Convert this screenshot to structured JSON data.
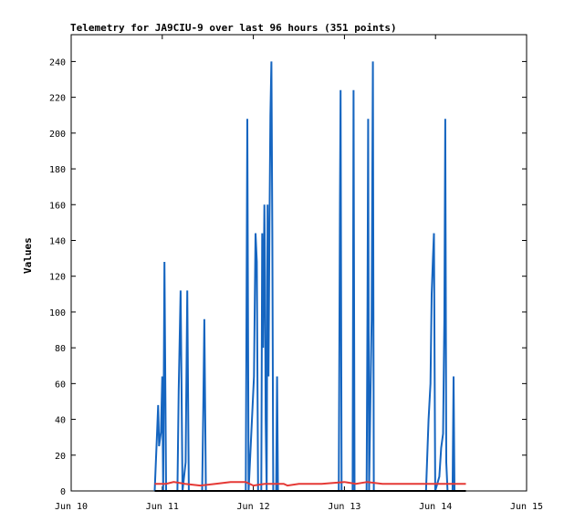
{
  "chart_data": {
    "type": "line",
    "title": "Telemetry for JA9CIU-9 over last 96 hours (351 points)",
    "xlabel": "",
    "ylabel": "Values",
    "x_ticks": [
      "Jun 10",
      "Jun 11",
      "Jun 12",
      "Jun 13",
      "Jun 14",
      "Jun 15"
    ],
    "xlim": [
      "2024-06-10 00:00",
      "2024-06-15 00:00"
    ],
    "ylim": [
      0,
      255
    ],
    "y_ticks": [
      0,
      20,
      40,
      60,
      80,
      100,
      120,
      140,
      160,
      180,
      200,
      220,
      240
    ],
    "grid": false,
    "legend": "none",
    "series": [
      {
        "color": "#1565c0",
        "style": "spikes",
        "points": [
          [
            "2024-06-10 22:00",
            0
          ],
          [
            "2024-06-10 22:40",
            35
          ],
          [
            "2024-06-10 22:55",
            48
          ],
          [
            "2024-06-10 23:10",
            25
          ],
          [
            "2024-06-10 23:40",
            33
          ],
          [
            "2024-06-11 00:00",
            64
          ],
          [
            "2024-06-11 00:15",
            0
          ],
          [
            "2024-06-11 00:35",
            128
          ],
          [
            "2024-06-11 01:00",
            0
          ],
          [
            "2024-06-11 04:00",
            0
          ],
          [
            "2024-06-11 04:20",
            56
          ],
          [
            "2024-06-11 04:50",
            112
          ],
          [
            "2024-06-11 05:20",
            0
          ],
          [
            "2024-06-11 06:10",
            16
          ],
          [
            "2024-06-11 06:35",
            112
          ],
          [
            "2024-06-11 07:00",
            0
          ],
          [
            "2024-06-11 10:30",
            0
          ],
          [
            "2024-06-11 10:50",
            48
          ],
          [
            "2024-06-11 11:05",
            96
          ],
          [
            "2024-06-11 11:30",
            0
          ],
          [
            "2024-06-11 22:00",
            0
          ],
          [
            "2024-06-11 22:25",
            208
          ],
          [
            "2024-06-11 22:45",
            0
          ],
          [
            "2024-06-12 00:10",
            64
          ],
          [
            "2024-06-12 00:35",
            144
          ],
          [
            "2024-06-12 00:55",
            128
          ],
          [
            "2024-06-12 01:15",
            0
          ],
          [
            "2024-06-12 02:05",
            0
          ],
          [
            "2024-06-12 02:20",
            144
          ],
          [
            "2024-06-12 02:35",
            80
          ],
          [
            "2024-06-12 02:55",
            160
          ],
          [
            "2024-06-12 03:05",
            120
          ],
          [
            "2024-06-12 03:15",
            40
          ],
          [
            "2024-06-12 03:30",
            0
          ],
          [
            "2024-06-12 03:45",
            160
          ],
          [
            "2024-06-12 04:00",
            64
          ],
          [
            "2024-06-12 04:15",
            150
          ],
          [
            "2024-06-12 04:30",
            210
          ],
          [
            "2024-06-12 04:45",
            240
          ],
          [
            "2024-06-12 05:00",
            144
          ],
          [
            "2024-06-12 05:15",
            0
          ],
          [
            "2024-06-12 06:00",
            0
          ],
          [
            "2024-06-12 06:15",
            64
          ],
          [
            "2024-06-12 06:30",
            0
          ],
          [
            "2024-06-12 22:30",
            0
          ],
          [
            "2024-06-12 22:50",
            160
          ],
          [
            "2024-06-12 23:00",
            224
          ],
          [
            "2024-06-12 23:15",
            0
          ],
          [
            "2024-06-13 02:10",
            0
          ],
          [
            "2024-06-13 02:25",
            224
          ],
          [
            "2024-06-13 02:40",
            0
          ],
          [
            "2024-06-13 05:50",
            0
          ],
          [
            "2024-06-13 06:05",
            104
          ],
          [
            "2024-06-13 06:15",
            208
          ],
          [
            "2024-06-13 06:30",
            0
          ],
          [
            "2024-06-13 07:10",
            96
          ],
          [
            "2024-06-13 07:30",
            240
          ],
          [
            "2024-06-13 07:45",
            0
          ],
          [
            "2024-06-13 21:30",
            0
          ],
          [
            "2024-06-13 22:10",
            40
          ],
          [
            "2024-06-13 22:40",
            60
          ],
          [
            "2024-06-13 23:00",
            110
          ],
          [
            "2024-06-13 23:20",
            130
          ],
          [
            "2024-06-13 23:35",
            144
          ],
          [
            "2024-06-13 23:55",
            0
          ],
          [
            "2024-06-14 01:00",
            8
          ],
          [
            "2024-06-14 01:30",
            24
          ],
          [
            "2024-06-14 02:00",
            32
          ],
          [
            "2024-06-14 02:20",
            96
          ],
          [
            "2024-06-14 02:35",
            208
          ],
          [
            "2024-06-14 02:50",
            16
          ],
          [
            "2024-06-14 03:10",
            0
          ],
          [
            "2024-06-14 04:30",
            0
          ],
          [
            "2024-06-14 04:45",
            64
          ],
          [
            "2024-06-14 05:00",
            0
          ]
        ]
      },
      {
        "color": "#e53935",
        "style": "line",
        "points": [
          [
            "2024-06-10 22:00",
            4
          ],
          [
            "2024-06-11 01:00",
            4
          ],
          [
            "2024-06-11 03:00",
            5
          ],
          [
            "2024-06-11 06:00",
            4
          ],
          [
            "2024-06-11 10:00",
            3
          ],
          [
            "2024-06-11 14:00",
            4
          ],
          [
            "2024-06-11 18:00",
            5
          ],
          [
            "2024-06-11 22:00",
            5
          ],
          [
            "2024-06-12 00:00",
            3
          ],
          [
            "2024-06-12 03:00",
            4
          ],
          [
            "2024-06-12 06:00",
            4
          ],
          [
            "2024-06-12 08:00",
            4
          ],
          [
            "2024-06-12 09:00",
            3
          ],
          [
            "2024-06-12 12:00",
            4
          ],
          [
            "2024-06-12 18:00",
            4
          ],
          [
            "2024-06-13 00:00",
            5
          ],
          [
            "2024-06-13 03:00",
            4
          ],
          [
            "2024-06-13 06:00",
            5
          ],
          [
            "2024-06-13 10:00",
            4
          ],
          [
            "2024-06-13 16:00",
            4
          ],
          [
            "2024-06-13 22:00",
            4
          ],
          [
            "2024-06-14 02:00",
            4
          ],
          [
            "2024-06-14 08:00",
            4
          ]
        ]
      },
      {
        "color": "#000000",
        "style": "line",
        "points": [
          [
            "2024-06-10 22:00",
            0
          ],
          [
            "2024-06-14 08:00",
            0
          ]
        ]
      }
    ]
  }
}
